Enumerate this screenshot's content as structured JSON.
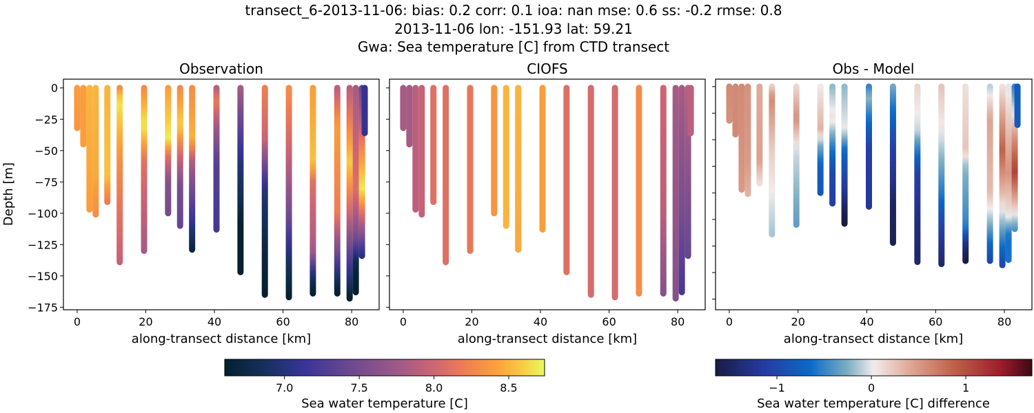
{
  "title_lines": [
    "transect_6-2013-11-06: bias: 0.2  corr: 0.1  ioa: nan  mse: 0.6  ss: -0.2  rmse: 0.8",
    "2013-11-06 lon: -151.93 lat: 59.21",
    "Gwa: Sea temperature [C] from CTD transect"
  ],
  "chart_data": [
    {
      "type": "scatter",
      "title": "Observation",
      "xlabel": "along-transect distance [km]",
      "ylabel": "Depth [m]",
      "xlim": [
        -4,
        88
      ],
      "ylim": [
        -177,
        7
      ],
      "xticks": [
        0,
        20,
        40,
        60,
        80
      ],
      "yticks": [
        0,
        -25,
        -50,
        -75,
        -100,
        -125,
        -150,
        -175
      ],
      "colormap": "thermal",
      "clim": [
        6.6,
        8.74
      ],
      "stations": [
        {
          "x": 0,
          "profile": [
            [
              0,
              8.4
            ],
            [
              32,
              8.35
            ]
          ]
        },
        {
          "x": 1.8,
          "profile": [
            [
              0,
              8.4
            ],
            [
              45,
              8.4
            ]
          ]
        },
        {
          "x": 3.6,
          "profile": [
            [
              0,
              8.5
            ],
            [
              60,
              8.45
            ],
            [
              97,
              8.4
            ]
          ]
        },
        {
          "x": 5.4,
          "profile": [
            [
              0,
              8.5
            ],
            [
              70,
              8.45
            ],
            [
              101,
              8.3
            ]
          ]
        },
        {
          "x": 8.8,
          "profile": [
            [
              0,
              8.5
            ],
            [
              70,
              8.55
            ],
            [
              91,
              8.2
            ]
          ]
        },
        {
          "x": 12.4,
          "profile": [
            [
              0,
              8.3
            ],
            [
              10,
              8.7
            ],
            [
              60,
              8.3
            ],
            [
              139,
              7.95
            ]
          ]
        },
        {
          "x": 19.5,
          "profile": [
            [
              0,
              8.3
            ],
            [
              30,
              8.7
            ],
            [
              60,
              8.1
            ],
            [
              130,
              7.8
            ]
          ]
        },
        {
          "x": 26.5,
          "profile": [
            [
              0,
              8.4
            ],
            [
              40,
              8.7
            ],
            [
              55,
              8.1
            ],
            [
              75,
              7.6
            ],
            [
              100,
              7.5
            ]
          ]
        },
        {
          "x": 30,
          "profile": [
            [
              0,
              8.3
            ],
            [
              30,
              8.6
            ],
            [
              55,
              8.0
            ],
            [
              80,
              7.5
            ],
            [
              110,
              7.4
            ]
          ]
        },
        {
          "x": 33.5,
          "profile": [
            [
              0,
              8.3
            ],
            [
              40,
              8.5
            ],
            [
              60,
              7.8
            ],
            [
              100,
              7.2
            ],
            [
              129,
              6.7
            ]
          ]
        },
        {
          "x": 40.6,
          "profile": [
            [
              0,
              7.9
            ],
            [
              10,
              8.2
            ],
            [
              35,
              7.7
            ],
            [
              60,
              7.3
            ],
            [
              113,
              7.2
            ]
          ]
        },
        {
          "x": 47.6,
          "profile": [
            [
              0,
              7.8
            ],
            [
              20,
              7.5
            ],
            [
              60,
              7.0
            ],
            [
              90,
              6.8
            ],
            [
              110,
              6.6
            ],
            [
              147,
              6.55
            ]
          ]
        },
        {
          "x": 54.7,
          "profile": [
            [
              0,
              8.2
            ],
            [
              40,
              8.0
            ],
            [
              60,
              7.5
            ],
            [
              80,
              7.0
            ],
            [
              130,
              6.7
            ],
            [
              165,
              6.6
            ]
          ]
        },
        {
          "x": 61.7,
          "profile": [
            [
              0,
              8.3
            ],
            [
              50,
              8.0
            ],
            [
              100,
              7.5
            ],
            [
              130,
              7.0
            ],
            [
              167,
              6.6
            ]
          ]
        },
        {
          "x": 68.7,
          "profile": [
            [
              0,
              8.4
            ],
            [
              60,
              8.55
            ],
            [
              75,
              8.1
            ],
            [
              130,
              7.8
            ],
            [
              150,
              6.9
            ],
            [
              164,
              6.6
            ]
          ]
        },
        {
          "x": 75.8,
          "profile": [
            [
              0,
              7.9
            ],
            [
              30,
              8.4
            ],
            [
              100,
              8.2
            ],
            [
              130,
              7.5
            ],
            [
              155,
              6.8
            ],
            [
              164,
              6.6
            ]
          ]
        },
        {
          "x": 79.4,
          "profile": [
            [
              0,
              7.9
            ],
            [
              60,
              8.6
            ],
            [
              100,
              8.0
            ],
            [
              150,
              7.0
            ],
            [
              168,
              6.6
            ]
          ]
        },
        {
          "x": 81.2,
          "profile": [
            [
              0,
              7.8
            ],
            [
              80,
              8.1
            ],
            [
              120,
              7.5
            ],
            [
              140,
              6.7
            ],
            [
              163,
              6.6
            ]
          ]
        },
        {
          "x": 83,
          "profile": [
            [
              0,
              7.4
            ],
            [
              50,
              8.3
            ],
            [
              80,
              8.7
            ],
            [
              110,
              7.8
            ],
            [
              134,
              7.0
            ]
          ]
        },
        {
          "x": 83.8,
          "profile": [
            [
              0,
              7.1
            ],
            [
              36,
              7.1
            ]
          ]
        }
      ]
    },
    {
      "type": "scatter",
      "title": "CIOFS",
      "xlabel": "along-transect distance [km]",
      "xlim": [
        -4,
        88
      ],
      "ylim": [
        -177,
        7
      ],
      "xticks": [
        0,
        20,
        40,
        60,
        80
      ],
      "colormap": "thermal",
      "clim": [
        6.6,
        8.74
      ],
      "stations": [
        {
          "x": 0,
          "profile": [
            [
              0,
              7.8
            ],
            [
              32,
              7.8
            ]
          ]
        },
        {
          "x": 1.8,
          "profile": [
            [
              0,
              7.8
            ],
            [
              45,
              7.8
            ]
          ]
        },
        {
          "x": 3.6,
          "profile": [
            [
              0,
              7.9
            ],
            [
              97,
              7.9
            ]
          ]
        },
        {
          "x": 5.4,
          "profile": [
            [
              0,
              7.95
            ],
            [
              101,
              7.95
            ]
          ]
        },
        {
          "x": 8.8,
          "profile": [
            [
              0,
              8.1
            ],
            [
              91,
              8.1
            ]
          ]
        },
        {
          "x": 12.4,
          "profile": [
            [
              0,
              8.1
            ],
            [
              139,
              8.1
            ]
          ]
        },
        {
          "x": 19.5,
          "profile": [
            [
              0,
              8.15
            ],
            [
              130,
              8.15
            ]
          ]
        },
        {
          "x": 26.5,
          "profile": [
            [
              0,
              8.35
            ],
            [
              100,
              8.35
            ]
          ]
        },
        {
          "x": 30,
          "profile": [
            [
              0,
              8.5
            ],
            [
              110,
              8.5
            ]
          ]
        },
        {
          "x": 33.5,
          "profile": [
            [
              0,
              8.5
            ],
            [
              129,
              8.45
            ]
          ]
        },
        {
          "x": 40.6,
          "profile": [
            [
              0,
              8.4
            ],
            [
              113,
              8.4
            ]
          ]
        },
        {
          "x": 47.6,
          "profile": [
            [
              0,
              8.1
            ],
            [
              147,
              8.1
            ]
          ]
        },
        {
          "x": 54.7,
          "profile": [
            [
              0,
              8.05
            ],
            [
              165,
              8.05
            ]
          ]
        },
        {
          "x": 61.7,
          "profile": [
            [
              0,
              8.05
            ],
            [
              167,
              8.05
            ]
          ]
        },
        {
          "x": 68.7,
          "profile": [
            [
              0,
              8.3
            ],
            [
              164,
              8.3
            ]
          ]
        },
        {
          "x": 75.8,
          "profile": [
            [
              0,
              8.0
            ],
            [
              100,
              7.9
            ],
            [
              164,
              7.6
            ]
          ]
        },
        {
          "x": 79.4,
          "profile": [
            [
              0,
              7.8
            ],
            [
              168,
              7.6
            ]
          ]
        },
        {
          "x": 81.2,
          "profile": [
            [
              0,
              7.8
            ],
            [
              100,
              7.5
            ],
            [
              163,
              7.2
            ]
          ]
        },
        {
          "x": 83,
          "profile": [
            [
              0,
              7.9
            ],
            [
              134,
              7.4
            ]
          ]
        },
        {
          "x": 83.8,
          "profile": [
            [
              0,
              7.9
            ],
            [
              36,
              7.9
            ]
          ]
        }
      ]
    },
    {
      "type": "scatter",
      "title": "Obs - Model",
      "xlabel": "along-transect distance [km]",
      "xlim": [
        -4,
        88
      ],
      "ylim": [
        -210,
        7
      ],
      "xticks": [
        0,
        20,
        40,
        60,
        80
      ],
      "colormap": "balance",
      "clim": [
        -1.65,
        1.7
      ],
      "values": "obs minus model"
    }
  ],
  "colorbars": [
    {
      "label": "Sea water temperature [C]",
      "ticks": [
        "7.0",
        "7.5",
        "8.0",
        "8.5"
      ],
      "tick_values": [
        7.0,
        7.5,
        8.0,
        8.5
      ]
    },
    {
      "label": "Sea water temperature [C] difference",
      "ticks": [
        "−1",
        "0",
        "1"
      ],
      "tick_values": [
        -1,
        0,
        1
      ]
    }
  ]
}
